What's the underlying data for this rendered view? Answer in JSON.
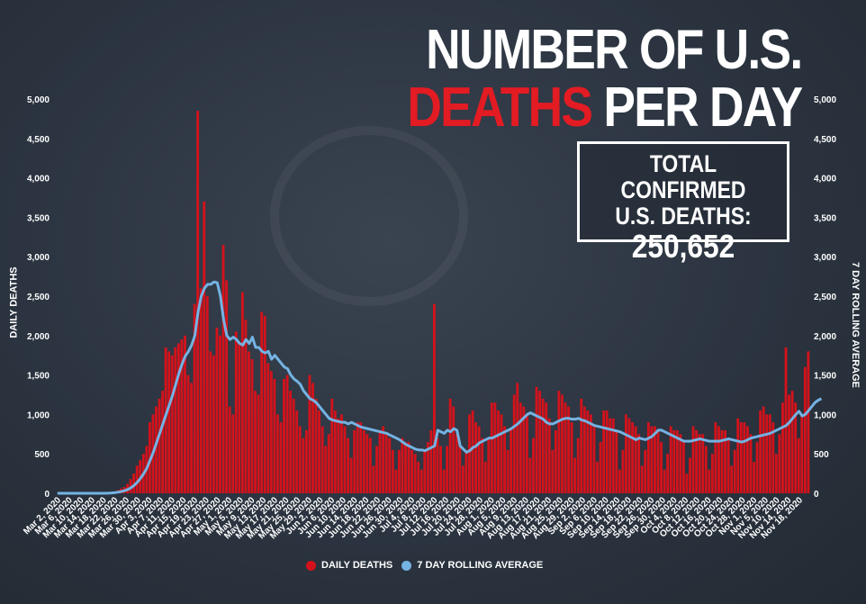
{
  "title": {
    "line1": "NUMBER OF U.S.",
    "line2_red": "DEATHS",
    "line2_rest": "PER DAY"
  },
  "total_box": {
    "label_line1": "TOTAL CONFIRMED",
    "label_line2": "U.S. DEATHS:",
    "value": "250,652"
  },
  "colors": {
    "bar": "#d4121b",
    "line": "#74b3e3",
    "background": "#2b3440",
    "text": "#ffffff"
  },
  "chart_data": {
    "type": "bar",
    "ylabel_left": "DAILY DEATHS",
    "ylabel_right": "7 DAY ROLLING AVERAGE",
    "ylim": [
      0,
      5000
    ],
    "yticks": [
      "0",
      "500",
      "1,000",
      "1,500",
      "2,000",
      "2,500",
      "3,000",
      "3,500",
      "4,000",
      "4,500",
      "5,000"
    ],
    "grid": false,
    "legend_position": "bottom-center",
    "legend": [
      "DAILY DEATHS",
      "7 DAY ROLLING AVERAGE"
    ],
    "x_start": "2020-03-02",
    "x_end": "2020-11-18",
    "x_tick_labels": [
      "Mar 2, 2020",
      "Mar 6, 2020",
      "Mar 10, 2020",
      "Mar 14, 2020",
      "Mar 18, 2020",
      "Mar 22, 2020",
      "Mar 26, 2020",
      "Mar 30, 2020",
      "Apr 3, 2020",
      "Apr 7, 2020",
      "Apr 11, 2020",
      "Apr 15, 2020",
      "Apr 19, 2020",
      "Apr 23, 2020",
      "Apr 27, 2020",
      "May 1, 2020",
      "May 5, 2020",
      "May 9, 2020",
      "May 13, 2020",
      "May 17, 2020",
      "May 21, 2020",
      "May 25, 2020",
      "May 29, 2020",
      "Jun 2, 2020",
      "Jun 6, 2020",
      "Jun 10, 2020",
      "Jun 14, 2020",
      "Jun 18, 2020",
      "Jun 22, 2020",
      "Jun 26, 2020",
      "Jun 30, 2020",
      "Jul 4, 2020",
      "Jul 8, 2020",
      "Jul 12, 2020",
      "Jul 16, 2020",
      "Jul 20, 2020",
      "Jul 24, 2020",
      "Jul 28, 2020",
      "Aug 1, 2020",
      "Aug 5, 2020",
      "Aug 9, 2020",
      "Aug 13, 2020",
      "Aug 17, 2020",
      "Aug 21, 2020",
      "Aug 25, 2020",
      "Aug 29, 2020",
      "Sep 2, 2020",
      "Sep 6, 2020",
      "Sep 10, 2020",
      "Sep 14, 2020",
      "Sep 18, 2020",
      "Sep 22, 2020",
      "Sep 26, 2020",
      "Sep 30, 2020",
      "Oct 4, 2020",
      "Oct 8, 2020",
      "Oct 12, 2020",
      "Oct 16, 2020",
      "Oct 20, 2020",
      "Oct 24, 2020",
      "Oct 28, 2020",
      "Nov 1, 2020",
      "Nov 5, 2020",
      "Nov 10, 2020",
      "Nov 14, 2020",
      "Nov 18, 2020"
    ],
    "daily_deaths": [
      0,
      0,
      0,
      0,
      0,
      0,
      0,
      0,
      0,
      0,
      0,
      0,
      0,
      0,
      0,
      0,
      5,
      10,
      20,
      40,
      60,
      80,
      120,
      180,
      250,
      350,
      420,
      500,
      600,
      900,
      1000,
      1100,
      1200,
      1300,
      1850,
      1800,
      1750,
      1850,
      1900,
      1950,
      2000,
      1500,
      1400,
      2400,
      4850,
      2600,
      3700,
      2500,
      1800,
      1750,
      2100,
      2000,
      3150,
      2700,
      1100,
      1000,
      2050,
      1900,
      2550,
      2200,
      1800,
      1700,
      1300,
      1250,
      2300,
      2250,
      1650,
      1550,
      1450,
      1000,
      900,
      1450,
      1500,
      1300,
      1200,
      1050,
      850,
      700,
      800,
      1500,
      1400,
      1200,
      1050,
      850,
      600,
      750,
      1200,
      1050,
      950,
      1000,
      850,
      700,
      450,
      800,
      900,
      900,
      800,
      750,
      700,
      350,
      600,
      800,
      850,
      750,
      700,
      550,
      300,
      550,
      700,
      650,
      650,
      550,
      500,
      400,
      300,
      550,
      650,
      800,
      2400,
      700,
      600,
      300,
      600,
      1200,
      1100,
      750,
      600,
      350,
      550,
      1000,
      1050,
      900,
      850,
      700,
      400,
      700,
      1150,
      1150,
      1050,
      1000,
      850,
      550,
      800,
      1250,
      1400,
      1150,
      1100,
      1000,
      450,
      700,
      1350,
      1300,
      1200,
      1150,
      950,
      550,
      800,
      1300,
      1250,
      1150,
      1100,
      900,
      450,
      700,
      1200,
      1100,
      1050,
      1000,
      850,
      400,
      650,
      1050,
      1050,
      950,
      950,
      800,
      300,
      550,
      1000,
      950,
      900,
      850,
      750,
      350,
      550,
      900,
      850,
      850,
      800,
      650,
      300,
      500,
      850,
      800,
      800,
      750,
      650,
      250,
      450,
      850,
      800,
      750,
      750,
      600,
      300,
      500,
      900,
      850,
      800,
      800,
      700,
      350,
      550,
      950,
      900,
      900,
      850,
      750,
      400,
      650,
      1050,
      1100,
      1000,
      1000,
      900,
      500,
      750,
      1150,
      1850,
      1250,
      1300,
      1150,
      700,
      1000,
      1600,
      1800
    ],
    "rolling_avg": [
      0,
      0,
      0,
      0,
      0,
      0,
      0,
      0,
      0,
      0,
      0,
      0,
      0,
      0,
      0,
      0,
      2,
      4,
      8,
      14,
      22,
      33,
      48,
      70,
      100,
      140,
      190,
      250,
      320,
      420,
      520,
      640,
      760,
      880,
      1000,
      1120,
      1240,
      1380,
      1520,
      1640,
      1740,
      1800,
      1880,
      2000,
      2300,
      2500,
      2600,
      2650,
      2650,
      2680,
      2670,
      2500,
      2200,
      2000,
      1950,
      1980,
      1950,
      1900,
      1880,
      1950,
      1900,
      1980,
      1850,
      1850,
      1800,
      1780,
      1800,
      1700,
      1750,
      1700,
      1650,
      1600,
      1580,
      1500,
      1450,
      1420,
      1380,
      1300,
      1250,
      1200,
      1180,
      1150,
      1100,
      1050,
      1000,
      950,
      930,
      920,
      910,
      900,
      900,
      880,
      900,
      880,
      860,
      840,
      830,
      820,
      810,
      800,
      790,
      780,
      770,
      760,
      740,
      720,
      700,
      680,
      650,
      620,
      600,
      580,
      560,
      550,
      550,
      540,
      560,
      580,
      600,
      800,
      780,
      760,
      800,
      780,
      820,
      800,
      600,
      560,
      520,
      540,
      580,
      600,
      640,
      660,
      680,
      700,
      700,
      720,
      740,
      760,
      780,
      800,
      820,
      850,
      880,
      920,
      960,
      1000,
      1020,
      1000,
      980,
      960,
      940,
      900,
      880,
      880,
      900,
      920,
      940,
      950,
      950,
      940,
      940,
      950,
      930,
      920,
      900,
      880,
      860,
      850,
      840,
      830,
      820,
      810,
      800,
      790,
      780,
      760,
      740,
      720,
      700,
      680,
      700,
      690,
      680,
      700,
      720,
      760,
      800,
      800,
      780,
      760,
      740,
      720,
      700,
      680,
      660,
      660,
      660,
      670,
      680,
      690,
      680,
      670,
      660,
      660,
      660,
      660,
      670,
      680,
      690,
      680,
      670,
      660,
      650,
      660,
      680,
      700,
      710,
      720,
      730,
      740,
      750,
      760,
      780,
      800,
      820,
      840,
      860,
      900,
      950,
      1000,
      1040,
      980,
      1000,
      1050,
      1100,
      1150,
      1180,
      1200
    ]
  }
}
